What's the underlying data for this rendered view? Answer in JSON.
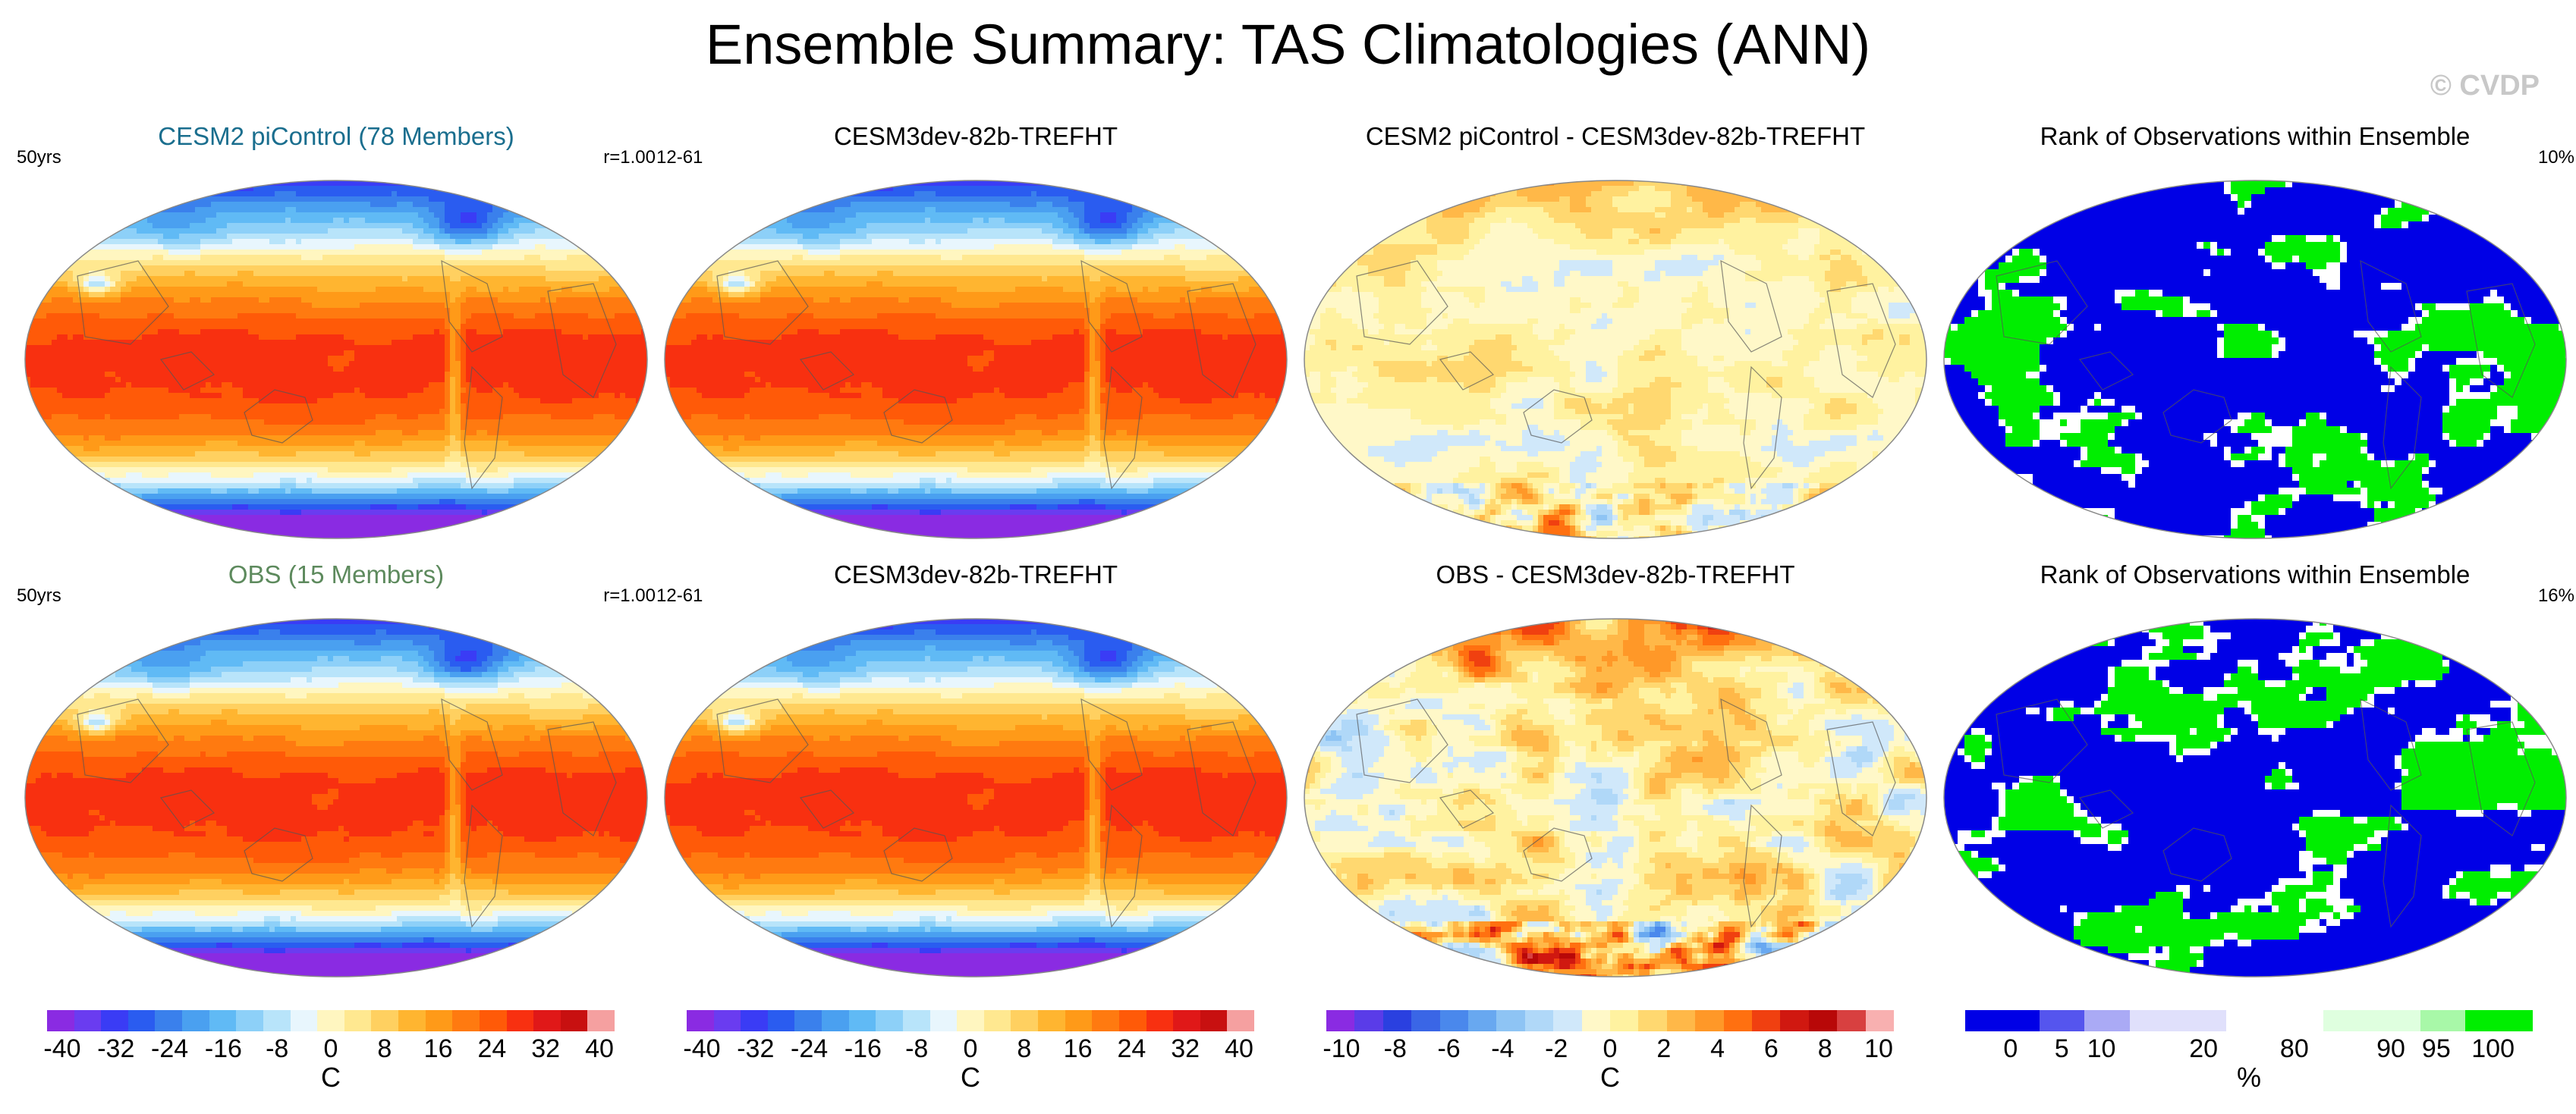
{
  "figure_title": "Ensemble Summary: TAS Climatologies (ANN)",
  "copyright": "© CVDP",
  "colors": {
    "ens_title": "#1a6e8e",
    "obs_title": "#5d8a5d"
  },
  "panels": [
    {
      "title": "CESM2 piControl (78 Members)",
      "left_tag": "50yrs",
      "right_tag": "r=1.00",
      "kind": "clim",
      "title_color": "ens"
    },
    {
      "title": "CESM3dev-82b-TREFHT",
      "left_tag": "12-61",
      "right_tag": "",
      "kind": "clim",
      "title_color": "black"
    },
    {
      "title": "CESM2 piControl - CESM3dev-82b-TREFHT",
      "left_tag": "",
      "right_tag": "",
      "kind": "diff1",
      "title_color": "black"
    },
    {
      "title": "Rank of Observations within Ensemble",
      "left_tag": "",
      "right_tag": "10%",
      "kind": "rank1",
      "title_color": "black"
    },
    {
      "title": "OBS (15 Members)",
      "left_tag": "50yrs",
      "right_tag": "r=1.00",
      "kind": "clim",
      "title_color": "obs"
    },
    {
      "title": "CESM3dev-82b-TREFHT",
      "left_tag": "12-61",
      "right_tag": "",
      "kind": "clim",
      "title_color": "black"
    },
    {
      "title": "OBS - CESM3dev-82b-TREFHT",
      "left_tag": "",
      "right_tag": "",
      "kind": "diff2",
      "title_color": "black"
    },
    {
      "title": "Rank of Observations within Ensemble",
      "left_tag": "",
      "right_tag": "16%",
      "kind": "rank2",
      "title_color": "black"
    }
  ],
  "colorbars": [
    {
      "name": "temperature",
      "unit": "C",
      "labels": [
        "-40",
        "-32",
        "-24",
        "-16",
        "-8",
        "0",
        "8",
        "16",
        "24",
        "32",
        "40"
      ]
    },
    {
      "name": "temperature",
      "unit": "C",
      "labels": [
        "-40",
        "-32",
        "-24",
        "-16",
        "-8",
        "0",
        "8",
        "16",
        "24",
        "32",
        "40"
      ]
    },
    {
      "name": "difference",
      "unit": "C",
      "labels": [
        "-10",
        "-8",
        "-6",
        "-4",
        "-2",
        "0",
        "2",
        "4",
        "6",
        "8",
        "10"
      ]
    },
    {
      "name": "rank",
      "unit": "%",
      "labels": [
        "0",
        "5",
        "10",
        "20",
        "80",
        "90",
        "95",
        "100"
      ]
    }
  ],
  "chart_data": {
    "type": "heatmap",
    "title": "Ensemble Summary: TAS Climatologies (ANN)",
    "variable": "TAS",
    "season": "ANN",
    "temperature_levels": [
      -40,
      -36,
      -32,
      -28,
      -24,
      -20,
      -16,
      -12,
      -8,
      -4,
      0,
      4,
      8,
      12,
      16,
      20,
      24,
      28,
      32,
      36,
      40
    ],
    "difference_levels": [
      -10,
      -9,
      -8,
      -7,
      -6,
      -5,
      -4,
      -3,
      -2,
      -1,
      0,
      1,
      2,
      3,
      4,
      5,
      6,
      7,
      8,
      9,
      10
    ],
    "rank_levels": [
      0,
      5,
      10,
      20,
      80,
      90,
      95,
      100
    ],
    "rank_summary": {
      "top": "10%",
      "bottom": "16%"
    },
    "pattern_correlation": {
      "top": 1.0,
      "bottom": 1.0
    }
  }
}
